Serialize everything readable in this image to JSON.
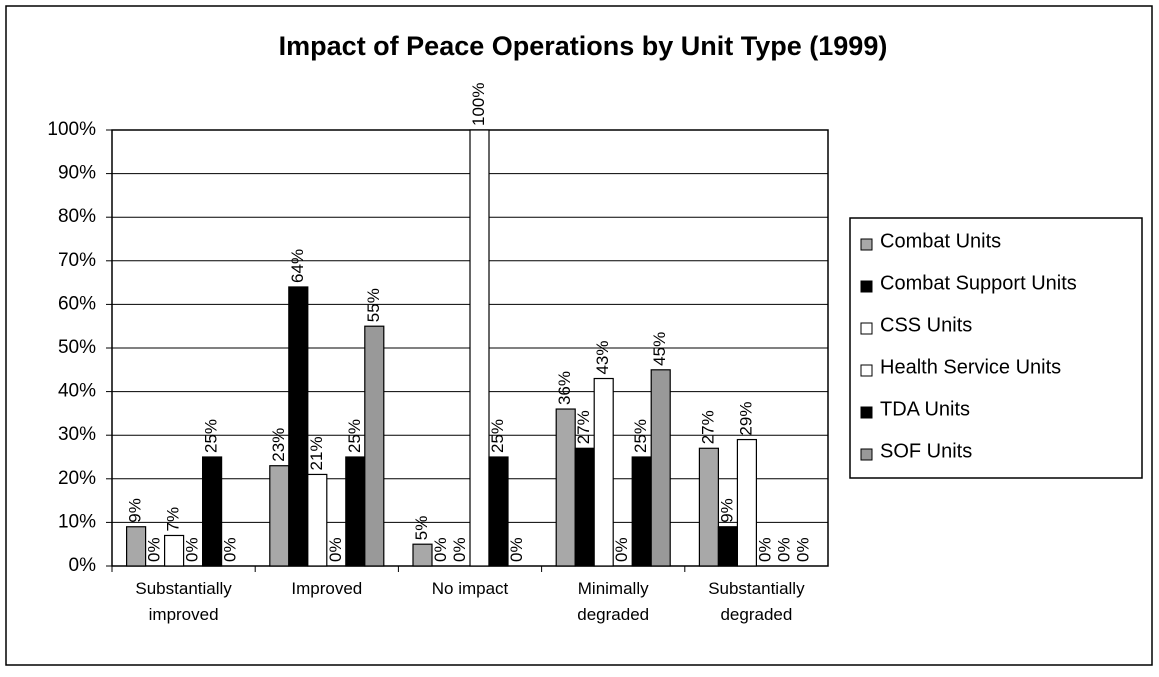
{
  "chart_data": {
    "type": "bar",
    "title": "Impact of Peace Operations by Unit Type (1999)",
    "categories": [
      "Substantially improved",
      "Improved",
      "No impact",
      "Minimally degraded",
      "Substantially degraded"
    ],
    "series": [
      {
        "name": "Combat Units",
        "color": "#a8a8a8",
        "values": [
          9,
          23,
          5,
          36,
          27
        ],
        "value_labels": [
          "9%",
          "23%",
          "5%",
          "36%",
          "27%"
        ]
      },
      {
        "name": "Combat Support Units",
        "color": "#000000",
        "values": [
          0,
          64,
          0,
          27,
          9
        ],
        "value_labels": [
          "0%",
          "64%",
          "0%",
          "27%",
          "9%"
        ]
      },
      {
        "name": "CSS Units",
        "color": "#ffffff",
        "values": [
          7,
          21,
          0,
          43,
          29
        ],
        "value_labels": [
          "7%",
          "21%",
          "0%",
          "43%",
          "29%"
        ]
      },
      {
        "name": "Health Service Units",
        "color": "#ffffff",
        "values": [
          0,
          0,
          100,
          0,
          0
        ],
        "value_labels": [
          "0%",
          "0%",
          "100%",
          "0%",
          "0%"
        ]
      },
      {
        "name": "TDA Units",
        "color": "#000000",
        "values": [
          25,
          25,
          25,
          25,
          0
        ],
        "value_labels": [
          "25%",
          "25%",
          "25%",
          "25%",
          "0%"
        ]
      },
      {
        "name": "SOF Units",
        "color": "#999999",
        "values": [
          0,
          55,
          0,
          45,
          0
        ],
        "value_labels": [
          "0%",
          "55%",
          "0%",
          "45%",
          "0%"
        ]
      }
    ],
    "ylim": [
      0,
      100
    ],
    "yticks": [
      {
        "value": 0,
        "label": "0%"
      },
      {
        "value": 10,
        "label": "10%"
      },
      {
        "value": 20,
        "label": "20%"
      },
      {
        "value": 30,
        "label": "30%"
      },
      {
        "value": 40,
        "label": "40%"
      },
      {
        "value": 50,
        "label": "50%"
      },
      {
        "value": 60,
        "label": "60%"
      },
      {
        "value": 70,
        "label": "70%"
      },
      {
        "value": 80,
        "label": "80%"
      },
      {
        "value": 90,
        "label": "90%"
      },
      {
        "value": 100,
        "label": "100%"
      }
    ],
    "grid": true,
    "legend": "right"
  }
}
